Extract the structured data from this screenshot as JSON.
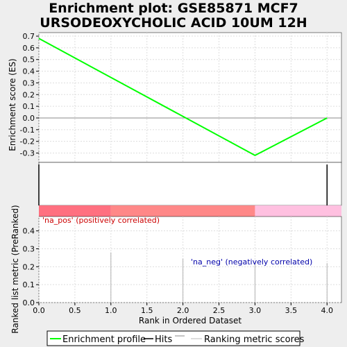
{
  "chart_data": {
    "type": "line",
    "title_lines": [
      "Enrichment plot: GSE85871 MCF7",
      "URSODEOXYCHOLIC ACID 10UM 12H"
    ],
    "xlabel": "Rank in Ordered Dataset",
    "xlim": [
      0,
      4.2
    ],
    "x_ticks": [
      "0.0",
      "0.5",
      "1.0",
      "1.5",
      "2.0",
      "2.5",
      "3.0",
      "3.5",
      "4.0"
    ],
    "es_panel": {
      "ylabel": "Enrichment score (ES)",
      "ylim": [
        -0.38,
        0.73
      ],
      "y_ticks": [
        "0.7",
        "0.6",
        "0.5",
        "0.4",
        "0.3",
        "0.2",
        "0.1",
        "0.0",
        "-0.1",
        "-0.2",
        "-0.3"
      ],
      "series": [
        {
          "name": "Enrichment profile",
          "color": "#00ff00",
          "x": [
            0,
            3,
            4
          ],
          "y": [
            0.68,
            -0.32,
            0.0
          ]
        }
      ]
    },
    "hits_panel": {
      "hits_x": [
        0,
        4
      ],
      "color": "#000000"
    },
    "heatmap_bar": {
      "segments": [
        {
          "x0": 0,
          "x1": 1,
          "color": "#ff7080"
        },
        {
          "x0": 1,
          "x1": 3,
          "color": "#ff8888"
        },
        {
          "x0": 3,
          "x1": 4.2,
          "color": "#ffc0e0"
        }
      ]
    },
    "metric_panel": {
      "ylabel": "Ranked list metric (PreRanked)",
      "ylim": [
        0,
        0.48
      ],
      "y_ticks": [
        "0.4",
        "0.3",
        "0.2",
        "0.1",
        "0.0"
      ],
      "bars": [
        {
          "x": 1,
          "value": 0.28
        },
        {
          "x": 2,
          "value": 0.245
        },
        {
          "x": 3,
          "value": 0.225
        },
        {
          "x": 4,
          "value": 0.22
        }
      ],
      "bar_color": "#b0b0b0",
      "annotations": [
        {
          "text": "'na_pos' (positively correlated)",
          "color": "#cc0000"
        },
        {
          "text": "'na_neg' (negatively correlated)",
          "color": "#0000aa"
        }
      ]
    },
    "legend": [
      {
        "label": "Enrichment profile",
        "color": "#00ff00"
      },
      {
        "label": "Hits",
        "color": "#000000"
      },
      {
        "label": "Ranking metric scores",
        "color": "#bbbbbb"
      }
    ]
  }
}
